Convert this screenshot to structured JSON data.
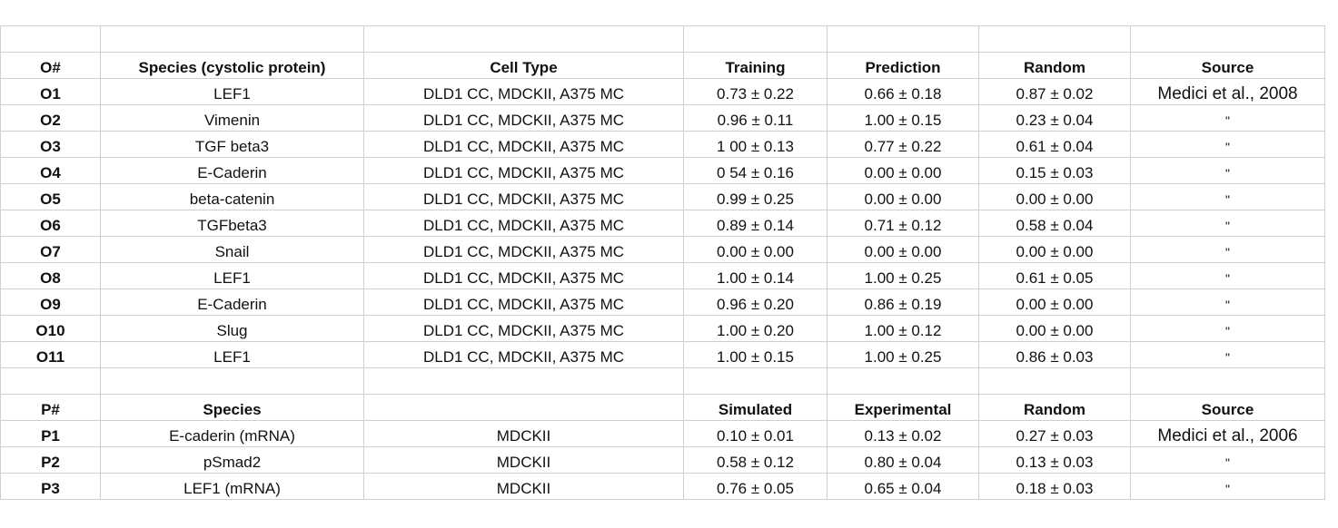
{
  "table1": {
    "headers": [
      "O#",
      "Species (cystolic protein)",
      "Cell Type",
      "Training",
      "Prediction",
      "Random",
      "Source"
    ],
    "rows": [
      [
        "O1",
        "LEF1",
        "DLD1 CC, MDCKII, A375 MC",
        "0.73 ±  0.22",
        "0.66 ±  0.18",
        "0.87 ±  0.02",
        "Medici et al., 2008"
      ],
      [
        "O2",
        "Vimenin",
        "DLD1 CC, MDCKII, A375 MC",
        "0.96 ±  0.11",
        "1.00 ±  0.15",
        "0.23 ±  0.04",
        "\""
      ],
      [
        "O3",
        "TGF beta3",
        "DLD1 CC, MDCKII, A375 MC",
        "1 00 ±  0.13",
        "0.77 ±  0.22",
        "0.61 ±  0.04",
        "\""
      ],
      [
        "O4",
        "E-Caderin",
        "DLD1 CC, MDCKII, A375 MC",
        "0 54 ±  0.16",
        "0.00 ±  0.00",
        "0.15 ±  0.03",
        "\""
      ],
      [
        "O5",
        "beta-catenin",
        "DLD1 CC, MDCKII, A375 MC",
        "0.99 ±  0.25",
        "0.00 ±  0.00",
        "0.00 ±  0.00",
        "\""
      ],
      [
        "O6",
        "TGFbeta3",
        "DLD1 CC, MDCKII, A375 MC",
        "0.89 ±  0.14",
        "0.71 ±  0.12",
        "0.58 ±  0.04",
        "\""
      ],
      [
        "O7",
        "Snail",
        "DLD1 CC, MDCKII, A375 MC",
        "0.00 ±  0.00",
        "0.00 ±  0.00",
        "0.00 ±  0.00",
        "\""
      ],
      [
        "O8",
        "LEF1",
        "DLD1 CC, MDCKII, A375 MC",
        "1.00 ±  0.14",
        "1.00 ±  0.25",
        "0.61 ±  0.05",
        "\""
      ],
      [
        "O9",
        "E-Caderin",
        "DLD1 CC, MDCKII, A375 MC",
        "0.96 ±  0.20",
        "0.86 ±  0.19",
        "0.00 ±  0.00",
        "\""
      ],
      [
        "O10",
        "Slug",
        "DLD1 CC, MDCKII, A375 MC",
        "1.00 ±  0.20",
        "1.00 ±  0.12",
        "0.00 ±  0.00",
        "\""
      ],
      [
        "O11",
        "LEF1",
        "DLD1 CC, MDCKII, A375 MC",
        "1.00 ±  0.15",
        "1.00 ±  0.25",
        "0.86 ±  0.03",
        "\""
      ]
    ]
  },
  "table2": {
    "headers": [
      "P#",
      "Species",
      "",
      "Simulated",
      "Experimental",
      "Random",
      "Source"
    ],
    "rows": [
      [
        "P1",
        "E-caderin (mRNA)",
        "MDCKII",
        "0.10 ±  0.01",
        "0.13 ±  0.02",
        "0.27 ±  0.03",
        "Medici et al., 2006"
      ],
      [
        "P2",
        "pSmad2",
        "MDCKII",
        "0.58 ±  0.12",
        "0.80 ±  0.04",
        "0.13 ±  0.03",
        "\""
      ],
      [
        "P3",
        "LEF1 (mRNA)",
        "MDCKII",
        "0.76 ±  0.05",
        "0.65 ±  0.04",
        "0.18 ±  0.03",
        "\""
      ]
    ]
  }
}
